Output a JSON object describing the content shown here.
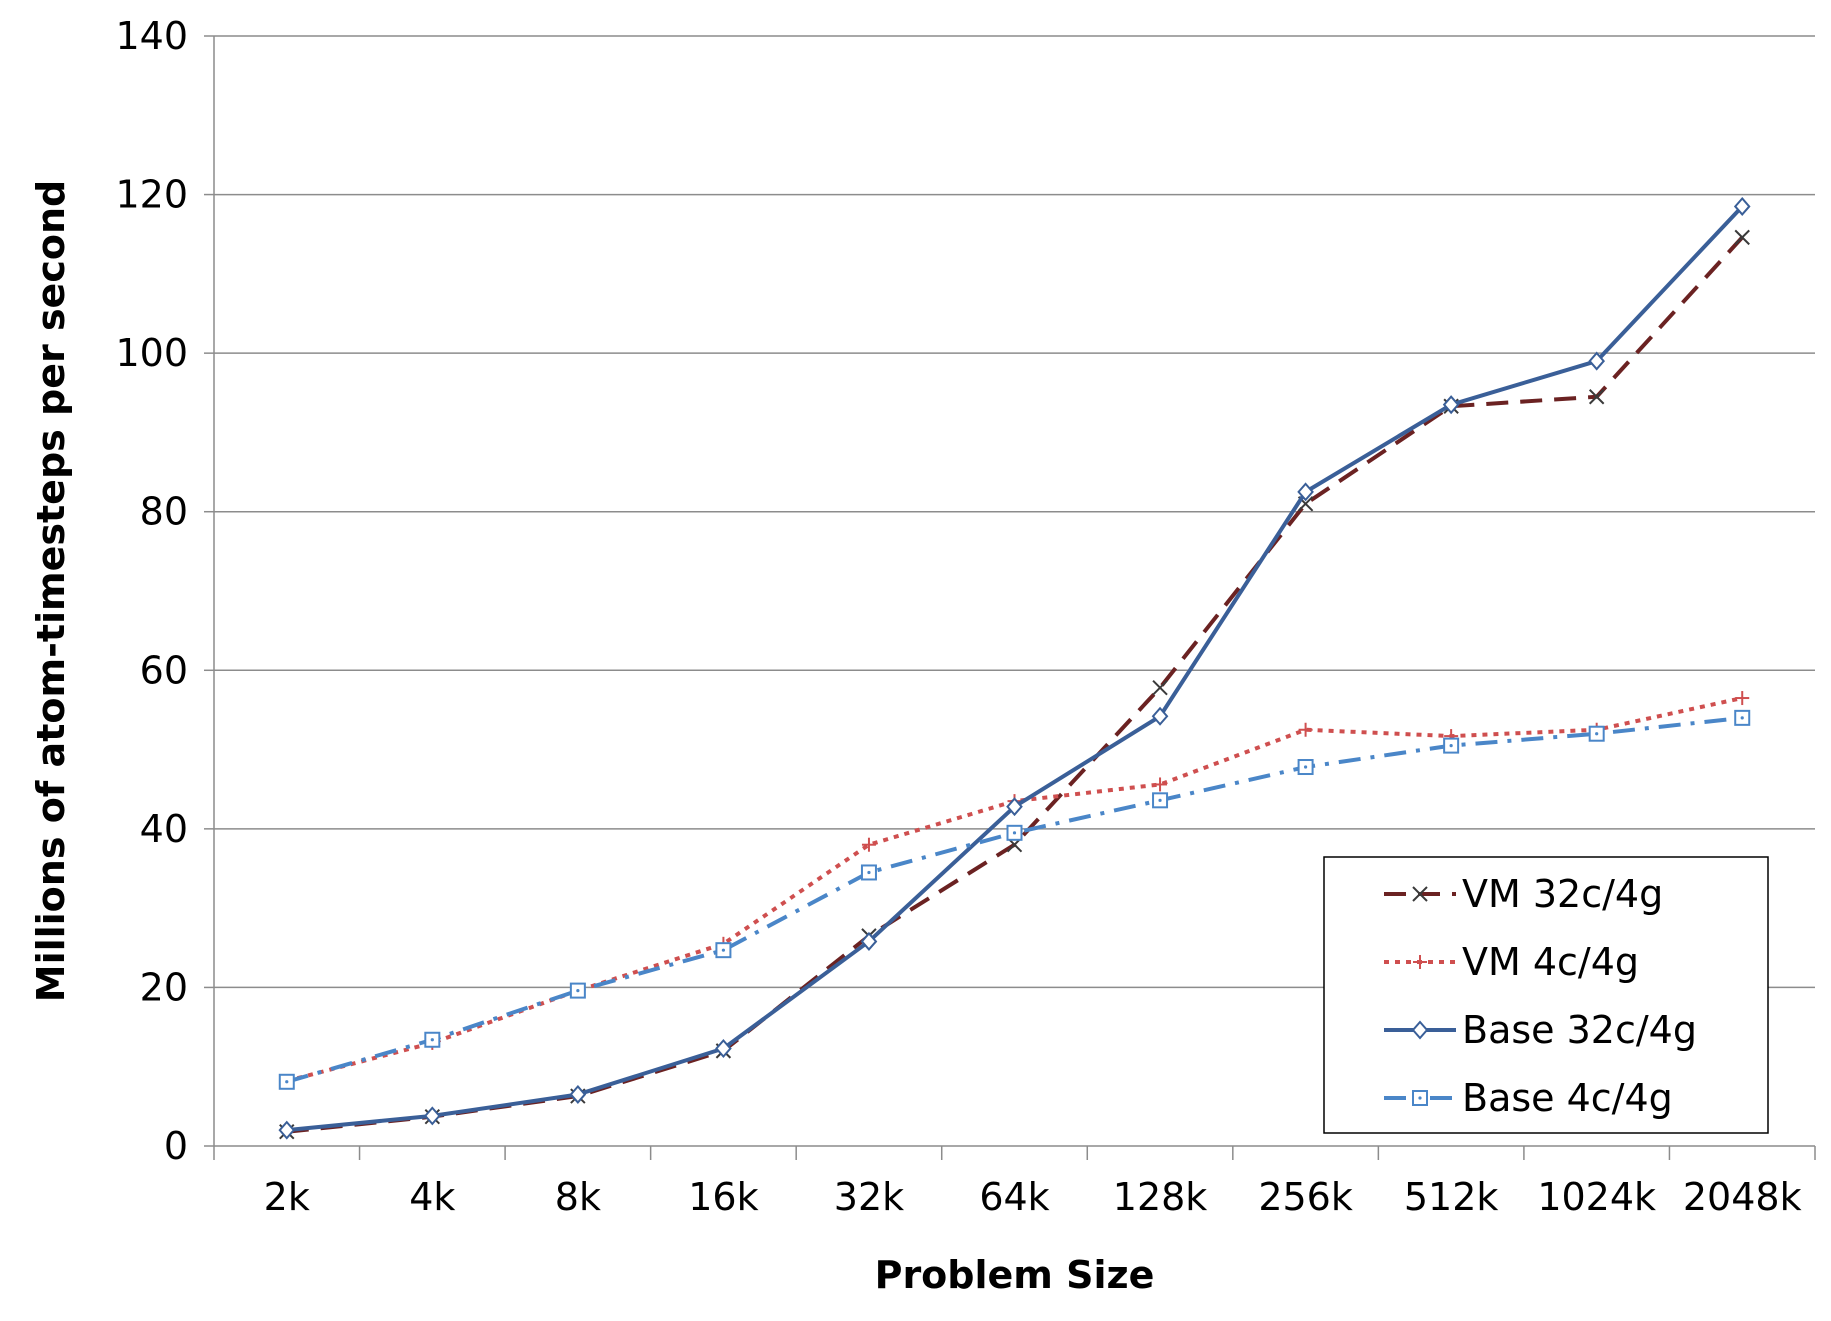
{
  "chart_data": {
    "type": "line",
    "title": "",
    "xlabel": "Problem Size",
    "ylabel": "Millions of atom-timesteps per second",
    "categories": [
      "2k",
      "4k",
      "8k",
      "16k",
      "32k",
      "64k",
      "128k",
      "256k",
      "512k",
      "1024k",
      "2048k"
    ],
    "ylim": [
      0,
      140
    ],
    "yticks": [
      "0",
      "20",
      "40",
      "60",
      "80",
      "100",
      "120",
      "140"
    ],
    "grid": true,
    "legend_position": "bottom-right",
    "series": [
      {
        "name": "VM 32c/4g",
        "color": "#6b2222",
        "dash": "dashed",
        "marker": "x",
        "values": [
          1.8,
          3.7,
          6.3,
          12.0,
          26.5,
          38.0,
          57.8,
          81.0,
          93.3,
          94.5,
          114.6
        ]
      },
      {
        "name": "VM 4c/4g",
        "color": "#cf4f4f",
        "dash": "dotted",
        "marker": "plus",
        "values": [
          8.2,
          13.0,
          19.6,
          25.5,
          38.0,
          43.5,
          45.6,
          52.5,
          51.7,
          52.5,
          56.5
        ]
      },
      {
        "name": "Base 32c/4g",
        "color": "#3a5f98",
        "dash": "solid",
        "marker": "diamond",
        "values": [
          2.0,
          3.8,
          6.5,
          12.3,
          25.8,
          42.8,
          54.2,
          82.5,
          93.5,
          99.0,
          118.5
        ]
      },
      {
        "name": "Base 4c/4g",
        "color": "#4a86c8",
        "dash": "dashdot",
        "marker": "square",
        "values": [
          8.1,
          13.4,
          19.6,
          24.7,
          34.5,
          39.5,
          43.6,
          47.8,
          50.5,
          52.0,
          54.0
        ]
      }
    ]
  }
}
